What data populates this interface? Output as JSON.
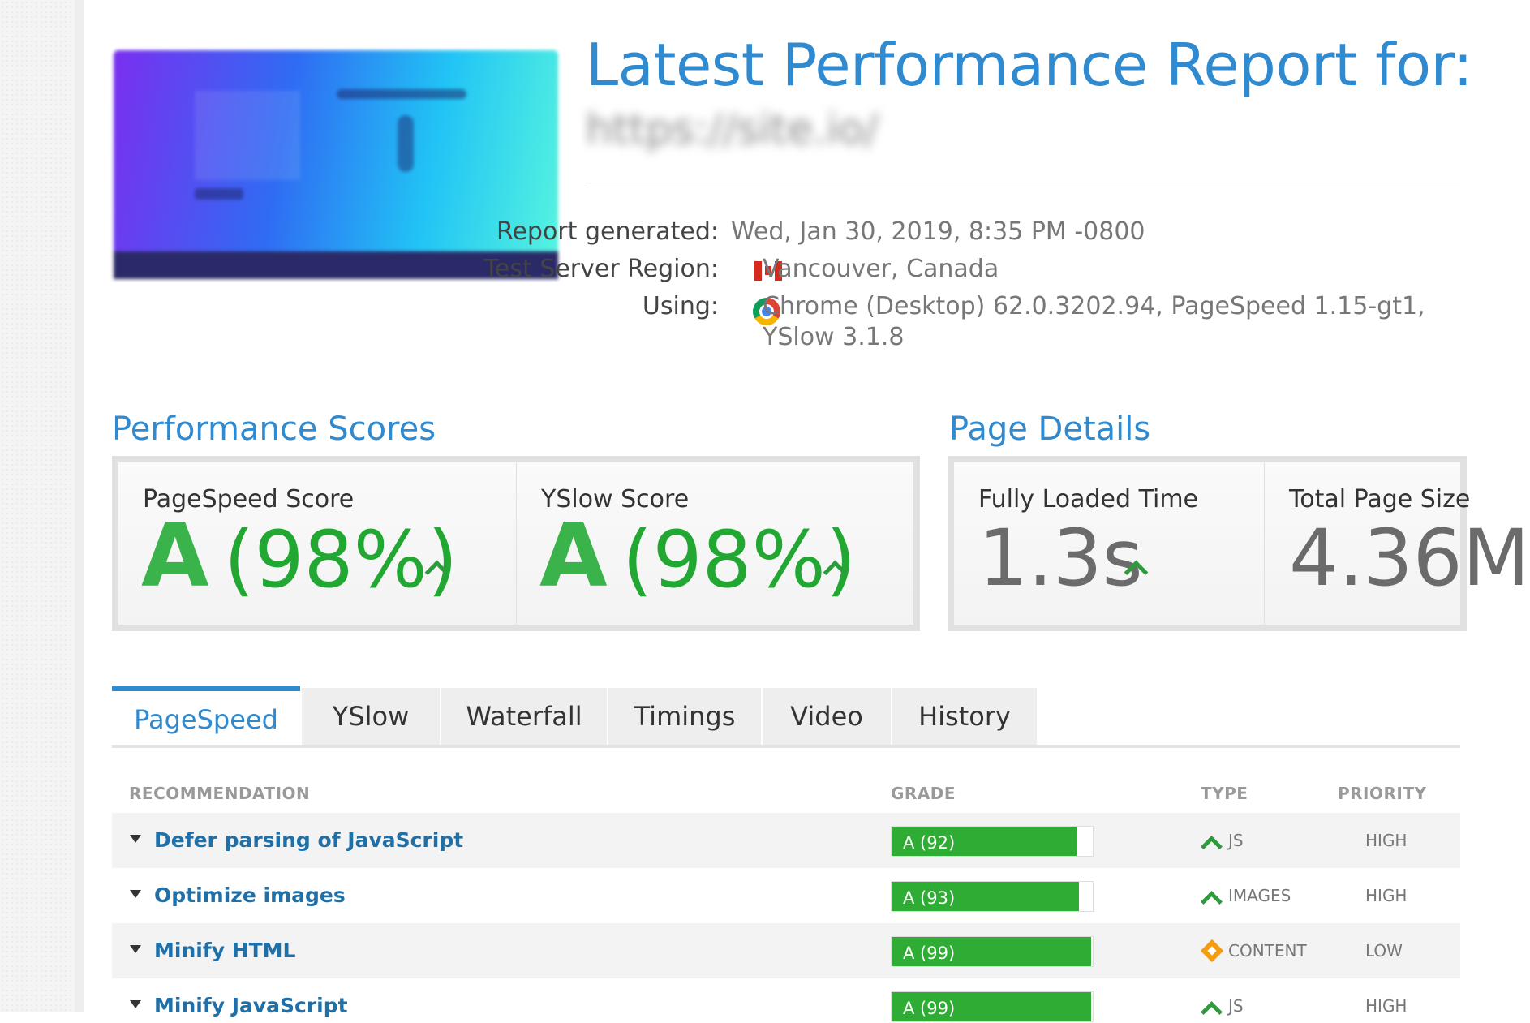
{
  "report": {
    "title": "Latest Performance Report for:",
    "url": "https://site.io/",
    "meta": [
      {
        "label": "Report generated:",
        "value": "Wed, Jan 30, 2019, 8:35 PM -0800"
      },
      {
        "label": "Test Server Region:",
        "value": "Vancouver, Canada",
        "icon": "canada-flag-icon"
      },
      {
        "label": "Using:",
        "value_line1": "Chrome (Desktop) 62.0.3202.94, PageSpeed 1.15-gt1,",
        "value_line2": "YSlow 3.1.8",
        "icon": "chrome-icon"
      }
    ]
  },
  "performance": {
    "heading": "Performance Scores",
    "pagespeed": {
      "label": "PageSpeed Score",
      "grade": "A",
      "percent": "(98%)"
    },
    "yslow": {
      "label": "YSlow Score",
      "grade": "A",
      "percent": "(98%)"
    }
  },
  "details": {
    "heading": "Page Details",
    "loaded": {
      "label": "Fully Loaded Time",
      "value": "1.3s"
    },
    "size": {
      "label": "Total Page Size",
      "value": "4.36M"
    }
  },
  "tabs": [
    "PageSpeed",
    "YSlow",
    "Waterfall",
    "Timings",
    "Video",
    "History"
  ],
  "active_tab": "PageSpeed",
  "table": {
    "headers": {
      "recommendation": "RECOMMENDATION",
      "grade": "GRADE",
      "type": "TYPE",
      "priority": "PRIORITY"
    },
    "rows": [
      {
        "name": "Defer parsing of JavaScript",
        "grade": "A (92)",
        "score": 92,
        "trend": "up",
        "type": "JS",
        "priority": "HIGH"
      },
      {
        "name": "Optimize images",
        "grade": "A (93)",
        "score": 93,
        "trend": "up",
        "type": "IMAGES",
        "priority": "HIGH"
      },
      {
        "name": "Minify HTML",
        "grade": "A (99)",
        "score": 99,
        "trend": "neutral",
        "type": "CONTENT",
        "priority": "LOW"
      },
      {
        "name": "Minify JavaScript",
        "grade": "A (99)",
        "score": 99,
        "trend": "up",
        "type": "JS",
        "priority": "HIGH"
      }
    ]
  },
  "colors": {
    "accent": "#2f8ad0",
    "grade_green": "#2fac34",
    "link": "#1f6fa8",
    "warning": "#f39c12"
  }
}
